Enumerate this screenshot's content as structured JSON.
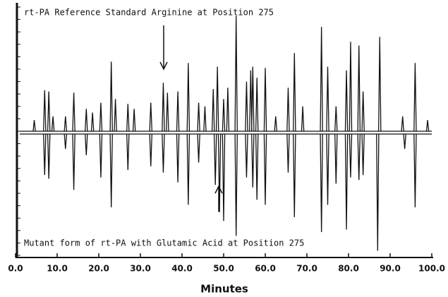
{
  "chart_data": {
    "type": "chromatogram",
    "x_label": "Minutes",
    "xlim": [
      0,
      100
    ],
    "xticks": [
      {
        "value": 0,
        "label": "0.0"
      },
      {
        "value": 10,
        "label": "10.0"
      },
      {
        "value": 20,
        "label": "20.0"
      },
      {
        "value": 30,
        "label": "30.0"
      },
      {
        "value": 40,
        "label": "40.0"
      },
      {
        "value": 50,
        "label": "50.0"
      },
      {
        "value": 60,
        "label": "60.0"
      },
      {
        "value": 70,
        "label": "70.0"
      },
      {
        "value": 80,
        "label": "80.0"
      },
      {
        "value": 90,
        "label": "90.0"
      },
      {
        "value": 100,
        "label": "100.0"
      }
    ],
    "ylim": [
      -100,
      100
    ],
    "yticks": [
      -100,
      -90,
      -80,
      -70,
      -60,
      -50,
      -40,
      -30,
      -20,
      -10,
      0,
      10,
      20,
      30,
      40,
      50,
      60,
      70,
      80,
      90,
      100
    ],
    "show_ytick_labels": false,
    "series": [
      {
        "name": "rt-PA Reference Standard Arginine at Position 275",
        "color": "#111111",
        "x": [
          4.5,
          7,
          8,
          9,
          12,
          14,
          17,
          18.5,
          20.5,
          23,
          24,
          27,
          28.5,
          32.5,
          35.5,
          36.5,
          39,
          41.5,
          44,
          45.5,
          47.5,
          48.5,
          50,
          51,
          53,
          55.5,
          56.5,
          57,
          58,
          60,
          62.5,
          65.5,
          67,
          69,
          73.5,
          75,
          77,
          79.5,
          80.5,
          82.5,
          83.5,
          87.5,
          93,
          96,
          99
        ],
        "values": [
          9,
          33,
          32,
          12,
          12,
          31,
          18,
          15,
          23,
          56,
          26,
          22,
          18,
          23,
          39,
          31,
          32,
          55,
          23,
          20,
          34,
          52,
          26,
          35,
          93,
          40,
          49,
          52,
          43,
          51,
          12,
          35,
          63,
          20,
          84,
          52,
          20,
          49,
          72,
          69,
          32,
          76,
          12,
          55,
          9
        ]
      },
      {
        "name": "Mutant form of rt-PA with Glutamic Acid at Position 275",
        "color": "#111111",
        "x": [
          7,
          8,
          12,
          14,
          17,
          20.5,
          23,
          27,
          32.5,
          35.5,
          39,
          41.5,
          44,
          48,
          49,
          50,
          53,
          55.5,
          57,
          58,
          60,
          65.5,
          67,
          73.5,
          75,
          77,
          79.5,
          80.5,
          82.5,
          83.5,
          87,
          93.5,
          96
        ],
        "values": [
          -33,
          -36,
          -12,
          -45,
          -17,
          -35,
          -59,
          -29,
          -26,
          -31,
          -39,
          -57,
          -23,
          -41,
          -63,
          -70,
          -82,
          -35,
          -43,
          -53,
          -57,
          -31,
          -67,
          -79,
          -57,
          -40,
          -77,
          -35,
          -37,
          -33,
          -94,
          -12,
          -59
        ]
      }
    ]
  }
}
